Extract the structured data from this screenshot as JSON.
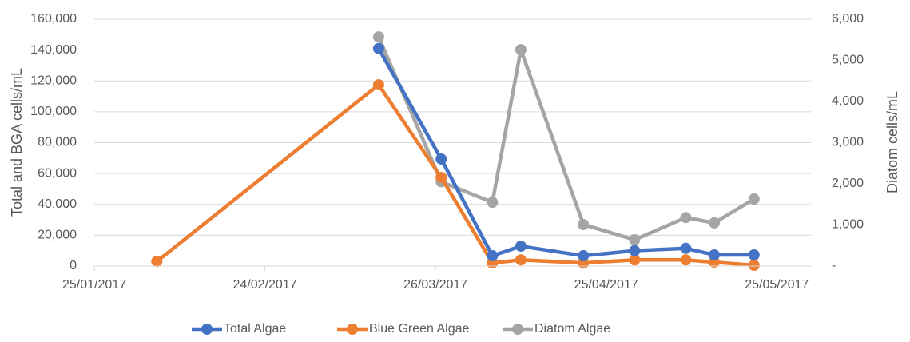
{
  "chart_data": {
    "type": "line",
    "y_label": "Total and BGA cells/mL",
    "y2_label": "Diatom cells/mL",
    "x": [
      "2017-02-05",
      "2017-03-16",
      "2017-03-27",
      "2017-04-05",
      "2017-04-10",
      "2017-04-21",
      "2017-04-30",
      "2017-05-09",
      "2017-05-14",
      "2017-05-21"
    ],
    "series": [
      {
        "name": "Total Algae",
        "color": "#4472c4",
        "values": [
          null,
          141000,
          69400,
          6700,
          12900,
          6700,
          10000,
          11500,
          7250,
          7250
        ]
      },
      {
        "name": "Blue Green Algae",
        "color": "#ed7d31",
        "values": [
          3000,
          117500,
          57500,
          2000,
          4000,
          2000,
          4000,
          4000,
          2500,
          500
        ]
      },
      {
        "name": "Diatom Algae",
        "color": "#a5a5a5",
        "axis": "y2",
        "values": [
          null,
          5570,
          2050,
          1550,
          5260,
          1010,
          640,
          1180,
          1050,
          1630
        ]
      }
    ],
    "xlim": [
      "2017-01-25",
      "2017-05-31"
    ],
    "xticks": [
      {
        "value": "2017-01-25",
        "label": "25/01/2017"
      },
      {
        "value": "2017-02-24",
        "label": "24/02/2017"
      },
      {
        "value": "2017-03-26",
        "label": "26/03/2017"
      },
      {
        "value": "2017-04-25",
        "label": "25/04/2017"
      },
      {
        "value": "2017-05-25",
        "label": "25/05/2017"
      }
    ],
    "ylim": [
      0,
      160000
    ],
    "yticks": [
      {
        "value": 0,
        "label": "0"
      },
      {
        "value": 20000,
        "label": "20,000"
      },
      {
        "value": 40000,
        "label": "40,000"
      },
      {
        "value": 60000,
        "label": "60,000"
      },
      {
        "value": 80000,
        "label": "80,000"
      },
      {
        "value": 100000,
        "label": "100,000"
      },
      {
        "value": 120000,
        "label": "120,000"
      },
      {
        "value": 140000,
        "label": "140,000"
      },
      {
        "value": 160000,
        "label": "160,000"
      }
    ],
    "y2lim": [
      0,
      6000
    ],
    "y2ticks": [
      {
        "value": 0,
        "label": "-"
      },
      {
        "value": 1000,
        "label": "1,000"
      },
      {
        "value": 2000,
        "label": "2,000"
      },
      {
        "value": 3000,
        "label": "3,000"
      },
      {
        "value": 4000,
        "label": "4,000"
      },
      {
        "value": 5000,
        "label": "5,000"
      },
      {
        "value": 6000,
        "label": "6,000"
      }
    ],
    "grid": true,
    "legend": "bottom"
  }
}
